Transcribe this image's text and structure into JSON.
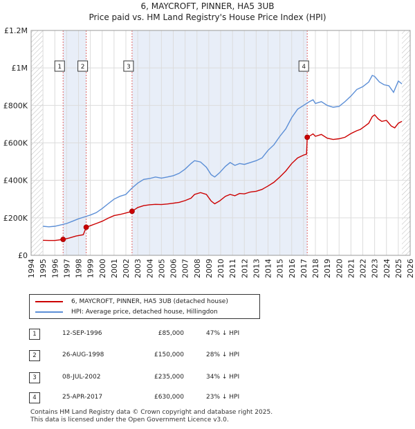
{
  "chart_data": {
    "type": "line",
    "title": "6, MAYCROFT, PINNER, HA5 3UB",
    "subtitle": "Price paid vs. HM Land Registry's House Price Index (HPI)",
    "xlim": [
      1994,
      2026
    ],
    "ylim": [
      0,
      1200000
    ],
    "x_ticks": [
      1994,
      1995,
      1996,
      1997,
      1998,
      1999,
      2000,
      2001,
      2002,
      2003,
      2004,
      2005,
      2006,
      2007,
      2008,
      2009,
      2010,
      2011,
      2012,
      2013,
      2014,
      2015,
      2016,
      2017,
      2018,
      2019,
      2020,
      2021,
      2022,
      2023,
      2024,
      2025,
      2026
    ],
    "y_ticks": [
      {
        "value": 0,
        "label": "£0"
      },
      {
        "value": 200000,
        "label": "£200K"
      },
      {
        "value": 400000,
        "label": "£400K"
      },
      {
        "value": 600000,
        "label": "£600K"
      },
      {
        "value": 800000,
        "label": "£800K"
      },
      {
        "value": 1000000,
        "label": "£1M"
      },
      {
        "value": 1200000,
        "label": "£1.2M"
      }
    ],
    "data_range": [
      1995.0,
      2025.3
    ],
    "series": [
      {
        "name": "6, MAYCROFT, PINNER, HA5 3UB (detached house)",
        "color": "#cc0000",
        "points": [
          [
            1995.0,
            80000
          ],
          [
            1995.5,
            79000
          ],
          [
            1996.0,
            79000
          ],
          [
            1996.7,
            85000
          ],
          [
            1997.2,
            92000
          ],
          [
            1997.8,
            103000
          ],
          [
            1998.4,
            110000
          ],
          [
            1998.65,
            150000
          ],
          [
            1999.0,
            158000
          ],
          [
            1999.5,
            170000
          ],
          [
            2000.0,
            182000
          ],
          [
            2000.5,
            198000
          ],
          [
            2001.0,
            212000
          ],
          [
            2001.5,
            218000
          ],
          [
            2002.0,
            226000
          ],
          [
            2002.52,
            235000
          ],
          [
            2003.0,
            255000
          ],
          [
            2003.5,
            265000
          ],
          [
            2004.0,
            270000
          ],
          [
            2004.5,
            272000
          ],
          [
            2005.0,
            271000
          ],
          [
            2005.5,
            274000
          ],
          [
            2006.0,
            278000
          ],
          [
            2006.5,
            283000
          ],
          [
            2007.0,
            292000
          ],
          [
            2007.5,
            305000
          ],
          [
            2007.8,
            325000
          ],
          [
            2008.3,
            335000
          ],
          [
            2008.8,
            325000
          ],
          [
            2009.2,
            290000
          ],
          [
            2009.5,
            275000
          ],
          [
            2009.9,
            290000
          ],
          [
            2010.4,
            315000
          ],
          [
            2010.8,
            325000
          ],
          [
            2011.2,
            318000
          ],
          [
            2011.6,
            330000
          ],
          [
            2012.0,
            328000
          ],
          [
            2012.5,
            338000
          ],
          [
            2013.0,
            342000
          ],
          [
            2013.5,
            352000
          ],
          [
            2014.0,
            370000
          ],
          [
            2014.5,
            390000
          ],
          [
            2015.0,
            418000
          ],
          [
            2015.5,
            450000
          ],
          [
            2016.0,
            490000
          ],
          [
            2016.5,
            520000
          ],
          [
            2017.0,
            535000
          ],
          [
            2017.25,
            540000
          ],
          [
            2017.31,
            630000
          ],
          [
            2017.6,
            640000
          ],
          [
            2017.8,
            648000
          ],
          [
            2018.0,
            635000
          ],
          [
            2018.5,
            645000
          ],
          [
            2019.0,
            625000
          ],
          [
            2019.5,
            618000
          ],
          [
            2020.0,
            622000
          ],
          [
            2020.5,
            630000
          ],
          [
            2021.0,
            650000
          ],
          [
            2021.5,
            665000
          ],
          [
            2021.8,
            672000
          ],
          [
            2022.2,
            690000
          ],
          [
            2022.5,
            705000
          ],
          [
            2022.8,
            740000
          ],
          [
            2023.0,
            750000
          ],
          [
            2023.3,
            728000
          ],
          [
            2023.6,
            715000
          ],
          [
            2024.0,
            720000
          ],
          [
            2024.4,
            690000
          ],
          [
            2024.7,
            680000
          ],
          [
            2025.0,
            705000
          ],
          [
            2025.3,
            715000
          ]
        ]
      },
      {
        "name": "HPI: Average price, detached house, Hillingdon",
        "color": "#5b8ed6",
        "points": [
          [
            1995.0,
            155000
          ],
          [
            1995.5,
            152000
          ],
          [
            1996.0,
            155000
          ],
          [
            1996.5,
            162000
          ],
          [
            1997.0,
            170000
          ],
          [
            1997.5,
            182000
          ],
          [
            1998.0,
            195000
          ],
          [
            1998.5,
            205000
          ],
          [
            1999.0,
            215000
          ],
          [
            1999.5,
            228000
          ],
          [
            2000.0,
            250000
          ],
          [
            2000.5,
            275000
          ],
          [
            2001.0,
            300000
          ],
          [
            2001.5,
            315000
          ],
          [
            2002.0,
            325000
          ],
          [
            2002.5,
            358000
          ],
          [
            2003.0,
            385000
          ],
          [
            2003.5,
            405000
          ],
          [
            2004.0,
            410000
          ],
          [
            2004.5,
            418000
          ],
          [
            2005.0,
            412000
          ],
          [
            2005.5,
            418000
          ],
          [
            2006.0,
            425000
          ],
          [
            2006.5,
            438000
          ],
          [
            2007.0,
            460000
          ],
          [
            2007.5,
            490000
          ],
          [
            2007.8,
            505000
          ],
          [
            2008.3,
            498000
          ],
          [
            2008.8,
            470000
          ],
          [
            2009.2,
            430000
          ],
          [
            2009.5,
            418000
          ],
          [
            2009.9,
            440000
          ],
          [
            2010.4,
            475000
          ],
          [
            2010.8,
            495000
          ],
          [
            2011.2,
            480000
          ],
          [
            2011.6,
            490000
          ],
          [
            2012.0,
            485000
          ],
          [
            2012.5,
            495000
          ],
          [
            2013.0,
            505000
          ],
          [
            2013.5,
            520000
          ],
          [
            2014.0,
            560000
          ],
          [
            2014.5,
            590000
          ],
          [
            2015.0,
            635000
          ],
          [
            2015.5,
            675000
          ],
          [
            2016.0,
            735000
          ],
          [
            2016.5,
            780000
          ],
          [
            2017.0,
            800000
          ],
          [
            2017.5,
            820000
          ],
          [
            2017.8,
            830000
          ],
          [
            2018.0,
            810000
          ],
          [
            2018.5,
            820000
          ],
          [
            2019.0,
            800000
          ],
          [
            2019.5,
            790000
          ],
          [
            2020.0,
            795000
          ],
          [
            2020.5,
            820000
          ],
          [
            2021.0,
            850000
          ],
          [
            2021.5,
            885000
          ],
          [
            2022.0,
            900000
          ],
          [
            2022.5,
            925000
          ],
          [
            2022.8,
            960000
          ],
          [
            2023.0,
            955000
          ],
          [
            2023.4,
            925000
          ],
          [
            2023.8,
            910000
          ],
          [
            2024.2,
            905000
          ],
          [
            2024.6,
            870000
          ],
          [
            2025.0,
            930000
          ],
          [
            2025.3,
            915000
          ]
        ]
      }
    ],
    "sales": [
      {
        "id": "1",
        "x": 1996.7,
        "price": 85000,
        "date": "12-SEP-1996",
        "price_label": "£85,000",
        "hpi": "47% ↓ HPI"
      },
      {
        "id": "2",
        "x": 1998.65,
        "price": 150000,
        "date": "26-AUG-1998",
        "price_label": "£150,000",
        "hpi": "28% ↓ HPI"
      },
      {
        "id": "3",
        "x": 2002.52,
        "price": 235000,
        "date": "08-JUL-2002",
        "price_label": "£235,000",
        "hpi": "34% ↓ HPI"
      },
      {
        "id": "4",
        "x": 2017.31,
        "price": 630000,
        "date": "25-APR-2017",
        "price_label": "£630,000",
        "hpi": "23% ↓ HPI"
      }
    ],
    "colors": {
      "grid": "#dcdcdc",
      "shade": "#e8eef8",
      "hatch": "#bbbbbb",
      "vline": "#e06666"
    }
  },
  "legend": {
    "property": "6, MAYCROFT, PINNER, HA5 3UB (detached house)",
    "hpi": "HPI: Average price, detached house, Hillingdon"
  },
  "footer": {
    "line1": "Contains HM Land Registry data © Crown copyright and database right 2025.",
    "line2": "This data is licensed under the Open Government Licence v3.0."
  }
}
